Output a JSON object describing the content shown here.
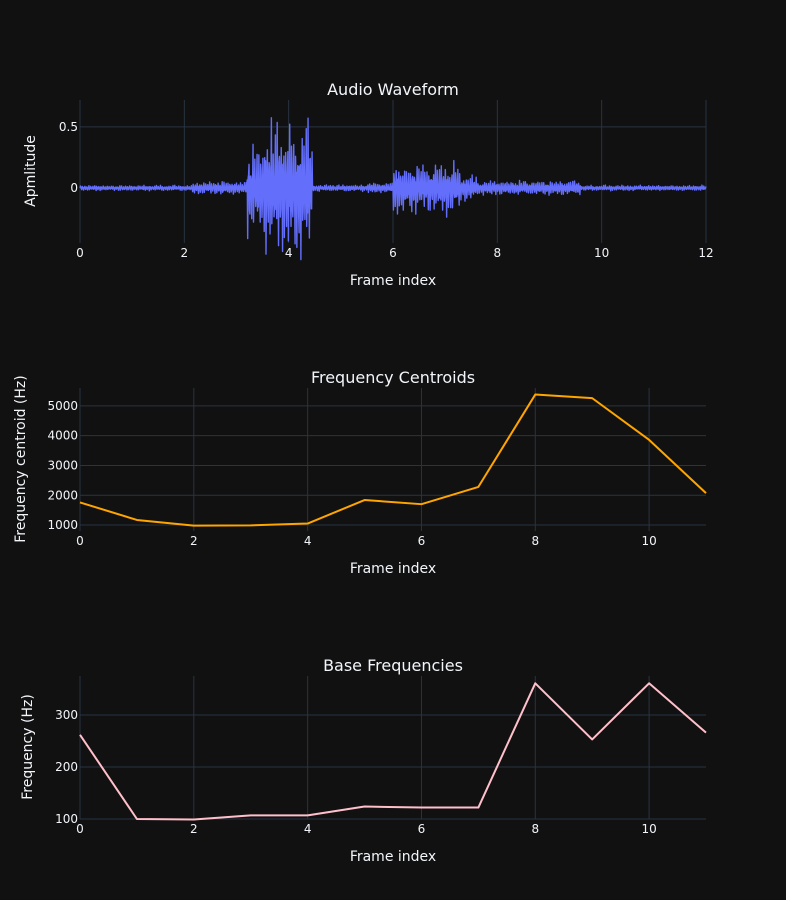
{
  "colors": {
    "background": "#111111",
    "grid": "#283442",
    "text": "#f2f5fa",
    "waveform": "#636efa",
    "centroid": "#ffa500",
    "base": "#ffc0cb"
  },
  "chart_data": [
    {
      "type": "line",
      "title": "Audio Waveform",
      "xlabel": "Frame index",
      "ylabel": "Apmlitude",
      "xlim": [
        0,
        12
      ],
      "ylim": [
        -0.45,
        0.72
      ],
      "xticks": [
        0,
        2,
        4,
        6,
        8,
        10,
        12
      ],
      "xtick_labels": [
        "0",
        "2",
        "4",
        "6",
        "8",
        "10",
        "12"
      ],
      "yticks": [
        0,
        0.5
      ],
      "ytick_labels": [
        "0",
        "0.5"
      ],
      "grid": true,
      "series": [
        {
          "color": "#636efa",
          "segments": [
            {
              "x0": 0,
              "x1": 2.15,
              "amp": 0.025
            },
            {
              "x0": 2.15,
              "x1": 3.2,
              "amp": 0.06
            },
            {
              "x0": 3.2,
              "x1": 3.55,
              "amp": 0.45
            },
            {
              "x0": 3.55,
              "x1": 4.45,
              "amp": 0.62
            },
            {
              "x0": 4.45,
              "x1": 5.5,
              "amp": 0.03
            },
            {
              "x0": 5.5,
              "x1": 6.0,
              "amp": 0.05
            },
            {
              "x0": 6.0,
              "x1": 7.3,
              "amp": 0.25
            },
            {
              "x0": 7.3,
              "x1": 7.6,
              "amp": 0.13
            },
            {
              "x0": 7.6,
              "x1": 9.6,
              "amp": 0.07
            },
            {
              "x0": 9.6,
              "x1": 12,
              "amp": 0.025
            }
          ]
        }
      ]
    },
    {
      "type": "line",
      "title": "Frequency Centroids",
      "xlabel": "Frame index",
      "ylabel": "Frequency centroid (Hz)",
      "xlim": [
        0,
        11
      ],
      "ylim": [
        800,
        5600
      ],
      "xticks": [
        0,
        2,
        4,
        6,
        8,
        10
      ],
      "xtick_labels": [
        "0",
        "2",
        "4",
        "6",
        "8",
        "10"
      ],
      "yticks": [
        1000,
        2000,
        3000,
        4000,
        5000
      ],
      "ytick_labels": [
        "1000",
        "2000",
        "3000",
        "4000",
        "5000"
      ],
      "grid": true,
      "series": [
        {
          "color": "#ffa500",
          "x": [
            0,
            1,
            2,
            3,
            4,
            5,
            6,
            7,
            8,
            9,
            10,
            11
          ],
          "values": [
            1760,
            1170,
            980,
            990,
            1050,
            1840,
            1700,
            2280,
            5380,
            5260,
            3860,
            2070
          ]
        }
      ]
    },
    {
      "type": "line",
      "title": "Base Frequencies",
      "xlabel": "Frame index",
      "ylabel": "Frequency (Hz)",
      "xlim": [
        0,
        11
      ],
      "ylim": [
        100,
        375
      ],
      "xticks": [
        0,
        2,
        4,
        6,
        8,
        10
      ],
      "xtick_labels": [
        "0",
        "2",
        "4",
        "6",
        "8",
        "10"
      ],
      "yticks": [
        100,
        200,
        300
      ],
      "ytick_labels": [
        "100",
        "200",
        "300"
      ],
      "grid": true,
      "series": [
        {
          "color": "#ffc0cb",
          "x": [
            0,
            1,
            2,
            3,
            4,
            5,
            6,
            7,
            8,
            9,
            10,
            11
          ],
          "values": [
            262,
            100,
            99,
            107,
            107,
            124,
            122,
            122,
            361,
            253,
            361,
            266
          ]
        }
      ]
    }
  ]
}
